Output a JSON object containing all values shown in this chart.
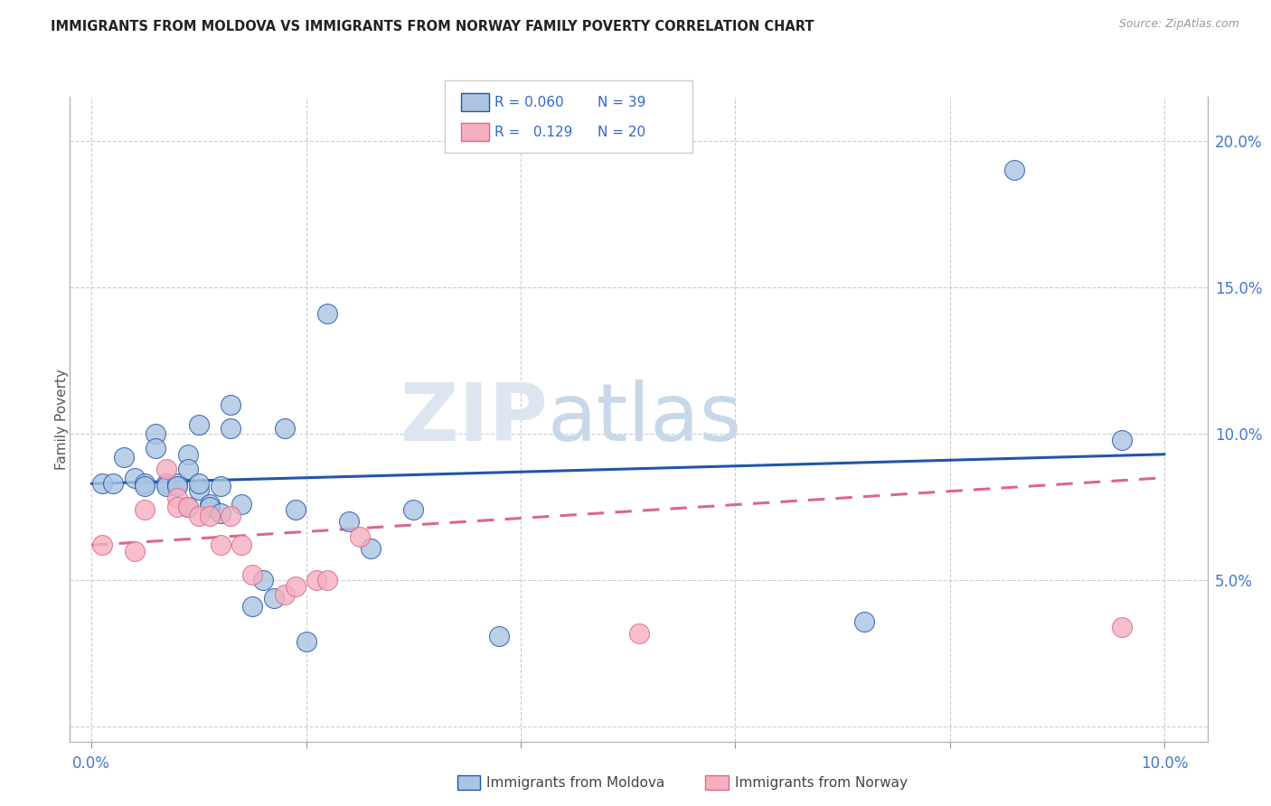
{
  "title": "IMMIGRANTS FROM MOLDOVA VS IMMIGRANTS FROM NORWAY FAMILY POVERTY CORRELATION CHART",
  "source": "Source: ZipAtlas.com",
  "ylabel": "Family Poverty",
  "moldova_color": "#aac4e2",
  "norway_color": "#f5b0c0",
  "moldova_line_color": "#2255aa",
  "norway_line_color": "#dd6688",
  "moldova_x": [
    0.001,
    0.002,
    0.003,
    0.004,
    0.005,
    0.005,
    0.006,
    0.006,
    0.007,
    0.007,
    0.008,
    0.008,
    0.009,
    0.009,
    0.009,
    0.01,
    0.01,
    0.01,
    0.011,
    0.011,
    0.012,
    0.012,
    0.013,
    0.013,
    0.014,
    0.015,
    0.016,
    0.017,
    0.018,
    0.019,
    0.02,
    0.022,
    0.024,
    0.026,
    0.03,
    0.038,
    0.072,
    0.086,
    0.096
  ],
  "moldova_y": [
    0.083,
    0.083,
    0.092,
    0.085,
    0.083,
    0.082,
    0.1,
    0.095,
    0.083,
    0.082,
    0.083,
    0.082,
    0.093,
    0.088,
    0.075,
    0.081,
    0.083,
    0.103,
    0.076,
    0.075,
    0.073,
    0.082,
    0.11,
    0.102,
    0.076,
    0.041,
    0.05,
    0.044,
    0.102,
    0.074,
    0.029,
    0.141,
    0.07,
    0.061,
    0.074,
    0.031,
    0.036,
    0.19,
    0.098
  ],
  "norway_x": [
    0.001,
    0.004,
    0.005,
    0.007,
    0.008,
    0.008,
    0.009,
    0.01,
    0.011,
    0.012,
    0.013,
    0.014,
    0.015,
    0.018,
    0.019,
    0.021,
    0.022,
    0.025,
    0.051,
    0.096
  ],
  "norway_y": [
    0.062,
    0.06,
    0.074,
    0.088,
    0.078,
    0.075,
    0.075,
    0.072,
    0.072,
    0.062,
    0.072,
    0.062,
    0.052,
    0.045,
    0.048,
    0.05,
    0.05,
    0.065,
    0.032,
    0.034
  ],
  "xlim": [
    -0.002,
    0.104
  ],
  "ylim": [
    -0.005,
    0.215
  ],
  "moldova_trend": [
    0.0,
    0.1,
    0.083,
    0.093
  ],
  "norway_trend": [
    0.0,
    0.1,
    0.062,
    0.085
  ]
}
